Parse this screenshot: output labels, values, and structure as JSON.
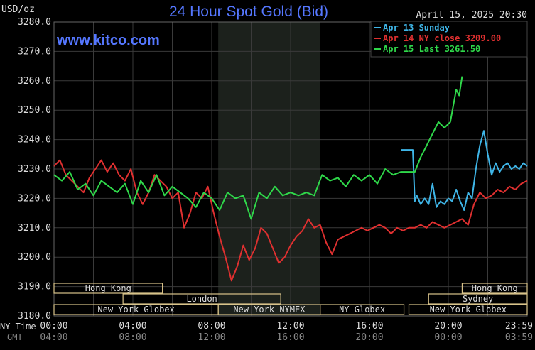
{
  "chart_data": {
    "type": "line",
    "title": "24 Hour Spot Gold (Bid)",
    "units_label": "USD/oz",
    "watermark": "www.kitco.com",
    "timestamp": "April 15, 2025 20:30",
    "ylim": [
      3180,
      3280
    ],
    "y_ticks": [
      "3280.0",
      "3270.0",
      "3260.0",
      "3250.0",
      "3240.0",
      "3230.0",
      "3220.0",
      "3210.0",
      "3200.0",
      "3190.0",
      "3180.0"
    ],
    "x_axis_ny_label": "NY Time",
    "x_axis_gmt_label": "GMT",
    "x_ticks_ny": [
      "00:00",
      "04:00",
      "08:00",
      "12:00",
      "16:00",
      "20:00",
      "23:59"
    ],
    "x_ticks_gmt": [
      "04:00",
      "08:00",
      "12:00",
      "16:00",
      "20:00",
      "00:00",
      "03:59"
    ],
    "nymex_shade_hours": [
      8.33,
      13.5
    ],
    "legend": [
      {
        "label": "Apr 13 Sunday",
        "color": "#3fb6e8"
      },
      {
        "label": "Apr 14 NY close 3209.00",
        "color": "#e03030"
      },
      {
        "label": "Apr 15 Last 3261.50",
        "color": "#2fd84a"
      }
    ],
    "sessions": [
      {
        "label": "Hong Kong",
        "start": 0,
        "end": 5.5,
        "row": 1
      },
      {
        "label": "Hong Kong",
        "start": 20.7,
        "end": 24,
        "row": 1
      },
      {
        "label": "London",
        "start": 3.5,
        "end": 11.5,
        "row": 2
      },
      {
        "label": "Sydney",
        "start": 19.0,
        "end": 24,
        "row": 2
      },
      {
        "label": "New York Globex",
        "start": 0,
        "end": 8.33,
        "row": 3
      },
      {
        "label": "New York NYMEX",
        "start": 8.33,
        "end": 13.5,
        "row": 3
      },
      {
        "label": "NY Globex",
        "start": 13.5,
        "end": 17.75,
        "row": 3
      },
      {
        "label": "New York Globex",
        "start": 18.0,
        "end": 24,
        "row": 3
      }
    ],
    "series": [
      {
        "name": "Apr 13 Sunday",
        "color": "#3fb6e8",
        "x": [
          17.6,
          18.2,
          18.3,
          18.4,
          18.6,
          18.8,
          19.0,
          19.2,
          19.4,
          19.6,
          19.8,
          20.0,
          20.2,
          20.4,
          20.6,
          20.8,
          21.0,
          21.2,
          21.4,
          21.6,
          21.8,
          22.0,
          22.2,
          22.4,
          22.6,
          22.8,
          23.0,
          23.2,
          23.4,
          23.6,
          23.8,
          24.0
        ],
        "y": [
          3236.5,
          3236.5,
          3219,
          3221,
          3218,
          3220,
          3218,
          3225,
          3217,
          3219,
          3218,
          3220,
          3219,
          3223,
          3219,
          3216,
          3222,
          3220,
          3230,
          3238,
          3243,
          3235,
          3228,
          3232,
          3229,
          3231,
          3232,
          3230,
          3231,
          3230,
          3232,
          3231
        ]
      },
      {
        "name": "Apr 14 NY close 3209.00",
        "color": "#e03030",
        "x": [
          0,
          0.3,
          0.6,
          0.9,
          1.2,
          1.5,
          1.8,
          2.1,
          2.4,
          2.7,
          3.0,
          3.3,
          3.6,
          3.9,
          4.2,
          4.5,
          4.8,
          5.1,
          5.4,
          5.7,
          6.0,
          6.3,
          6.6,
          6.9,
          7.2,
          7.5,
          7.8,
          8.1,
          8.4,
          8.7,
          9.0,
          9.3,
          9.6,
          9.9,
          10.2,
          10.5,
          10.8,
          11.1,
          11.4,
          11.7,
          12.0,
          12.3,
          12.6,
          12.9,
          13.2,
          13.5,
          13.8,
          14.1,
          14.4,
          14.7,
          15.0,
          15.3,
          15.6,
          15.9,
          16.2,
          16.5,
          16.8,
          17.1,
          17.4,
          17.7,
          18.0,
          18.3,
          18.6,
          18.9,
          19.2,
          19.5,
          19.8,
          20.1,
          20.4,
          20.7,
          21.0,
          21.3,
          21.6,
          21.9,
          22.2,
          22.5,
          22.8,
          23.1,
          23.4,
          23.7,
          24.0
        ],
        "y": [
          3231,
          3233,
          3228,
          3226,
          3224,
          3222,
          3227,
          3230,
          3233,
          3229,
          3232,
          3228,
          3226,
          3230,
          3222,
          3218,
          3222,
          3228,
          3226,
          3224,
          3220,
          3222,
          3210,
          3215,
          3222,
          3220,
          3224,
          3215,
          3207,
          3200,
          3192,
          3197,
          3204,
          3199,
          3203,
          3210,
          3208,
          3203,
          3198,
          3200,
          3204,
          3207,
          3209,
          3213,
          3210,
          3211,
          3205,
          3201,
          3206,
          3207,
          3208,
          3209,
          3210,
          3209,
          3210,
          3211,
          3210,
          3208,
          3210,
          3209,
          3210,
          3210,
          3211,
          3210,
          3212,
          3211,
          3210,
          3211,
          3212,
          3213,
          3211,
          3218,
          3222,
          3220,
          3221,
          3223,
          3222,
          3224,
          3223,
          3225,
          3226
        ]
      },
      {
        "name": "Apr 15 Last 3261.50",
        "color": "#2fd84a",
        "x": [
          0,
          0.4,
          0.8,
          1.2,
          1.6,
          2.0,
          2.4,
          2.8,
          3.2,
          3.6,
          4.0,
          4.4,
          4.8,
          5.2,
          5.6,
          6.0,
          6.4,
          6.8,
          7.2,
          7.6,
          8.0,
          8.4,
          8.8,
          9.2,
          9.6,
          10.0,
          10.4,
          10.8,
          11.2,
          11.6,
          12.0,
          12.4,
          12.8,
          13.2,
          13.6,
          14.0,
          14.4,
          14.8,
          15.2,
          15.6,
          16.0,
          16.4,
          16.8,
          17.2,
          17.6,
          18.0,
          18.3,
          18.6,
          18.9,
          19.2,
          19.5,
          19.8,
          20.1,
          20.4,
          20.55,
          20.7
        ],
        "y": [
          3228,
          3226,
          3229,
          3223,
          3225,
          3221,
          3226,
          3224,
          3222,
          3225,
          3218,
          3226,
          3222,
          3228,
          3221,
          3224,
          3222,
          3220,
          3217,
          3222,
          3220,
          3216,
          3222,
          3220,
          3221,
          3213,
          3222,
          3220,
          3224,
          3221,
          3222,
          3221,
          3222,
          3221,
          3228,
          3226,
          3227,
          3224,
          3228,
          3226,
          3228,
          3225,
          3230,
          3228,
          3229,
          3229,
          3229,
          3234,
          3238,
          3242,
          3246,
          3244,
          3246,
          3257,
          3255,
          3261.5
        ]
      }
    ]
  }
}
